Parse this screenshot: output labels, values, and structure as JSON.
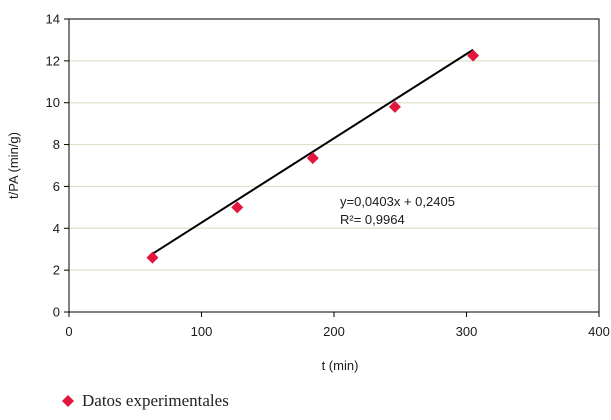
{
  "chart_data": {
    "type": "scatter",
    "title": "",
    "xlabel": "t (min)",
    "ylabel": "t/PA (min/g)",
    "xlim": [
      0,
      400
    ],
    "ylim": [
      0,
      14
    ],
    "x_ticks": [
      0,
      100,
      200,
      300,
      400
    ],
    "y_ticks": [
      0,
      2,
      4,
      6,
      8,
      10,
      12,
      14
    ],
    "grid": "horizontal",
    "series": [
      {
        "name": "Datos experimentales",
        "color": "#e3173e",
        "marker": "diamond",
        "x": [
          63,
          127,
          184,
          246,
          305
        ],
        "y": [
          2.6,
          5.0,
          7.35,
          9.8,
          12.25
        ]
      }
    ],
    "trendline": {
      "slope": 0.0403,
      "intercept": 0.2405,
      "equation": "y=0,0403x + 0,2405",
      "r2_label": "R²= 0,9964",
      "color": "#000000"
    },
    "legend": {
      "position": "bottom-left",
      "label": "Datos experimentales"
    }
  }
}
